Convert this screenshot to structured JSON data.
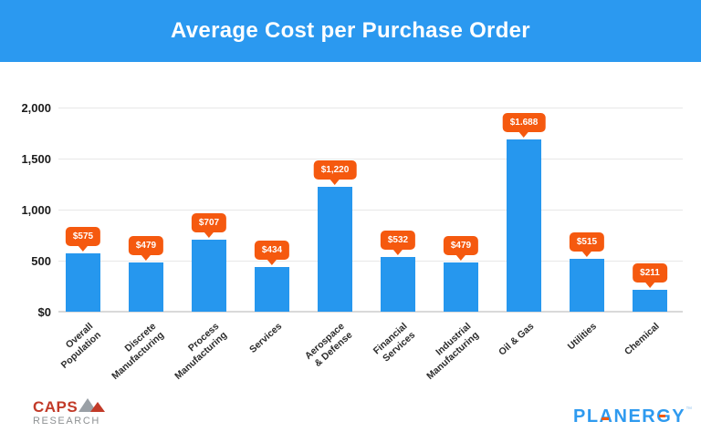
{
  "header": {
    "title": "Average Cost per Purchase Order"
  },
  "chart_data": {
    "type": "bar",
    "title": "Average Cost per Purchase Order",
    "categories": [
      "Overall\nPopulation",
      "Discrete\nManufacturing",
      "Process\nManufacturing",
      "Services",
      "Aerospace\n& Defense",
      "Financial\nServices",
      "Industrial\nManufacturing",
      "Oil & Gas",
      "Utilities",
      "Chemical"
    ],
    "values": [
      575,
      479,
      707,
      434,
      1220,
      532,
      479,
      1688,
      515,
      211
    ],
    "value_labels": [
      "$575",
      "$479",
      "$707",
      "$434",
      "$1,220",
      "$532",
      "$479",
      "$1.688",
      "$515",
      "$211"
    ],
    "ylabel": "",
    "xlabel": "",
    "ylim": [
      0,
      2000
    ],
    "yticks": [
      {
        "label": "2,000",
        "value": 2000
      },
      {
        "label": "1,500",
        "value": 1500
      },
      {
        "label": "1,000",
        "value": 1000
      },
      {
        "label": "500",
        "value": 500
      },
      {
        "label": "$0",
        "value": 0
      }
    ],
    "grid": true,
    "legend_position": "none",
    "bar_color": "#2697ee",
    "callout_color": "#f5590f"
  },
  "footer": {
    "caps_logo": {
      "line1": "CAPS",
      "line2": "RESEARCH"
    },
    "planergy_logo": {
      "text": "PLANERGY",
      "tm": "™"
    }
  },
  "colors": {
    "header_bg": "#2b99f0",
    "bar_blue": "#2697ee",
    "callout_orange": "#f5590f",
    "axis_text": "#1b1b1b",
    "grid_line": "#e8e8e8",
    "caps_red": "#c23a28",
    "caps_gray": "#8e9193",
    "planergy_blue": "#2e9aef"
  }
}
